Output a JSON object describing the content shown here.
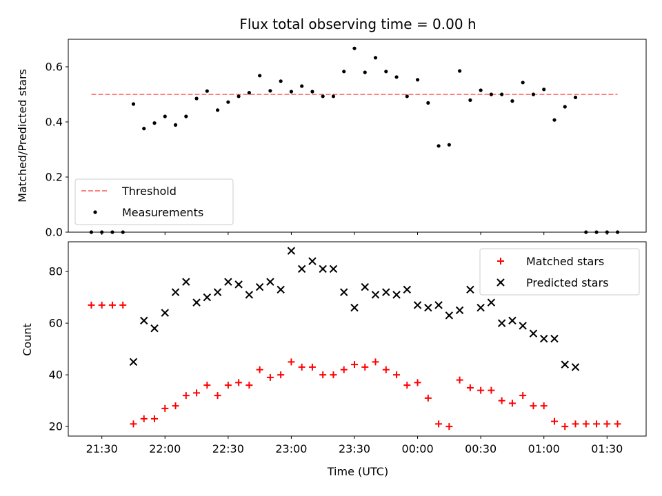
{
  "chart_data": [
    {
      "type": "scatter",
      "title": "Flux total observing time = 0.00 h",
      "xlabel": "",
      "ylabel": "Matched/Predicted stars",
      "ylim": [
        0,
        0.7
      ],
      "yticks": [
        "0.0",
        "0.2",
        "0.4",
        "0.6"
      ],
      "ytick_values": [
        0,
        0.2,
        0.4,
        0.6
      ],
      "threshold": {
        "name": "Threshold",
        "value": 0.5,
        "x_start": "21:25",
        "x_end": "01:35",
        "color": "#ff8080"
      },
      "series": [
        {
          "name": "Measurements",
          "color": "#000000",
          "x": [
            "21:25",
            "21:30",
            "21:35",
            "21:40",
            "21:45",
            "21:50",
            "21:55",
            "22:00",
            "22:05",
            "22:10",
            "22:15",
            "22:20",
            "22:25",
            "22:30",
            "22:35",
            "22:40",
            "22:45",
            "22:50",
            "22:55",
            "23:00",
            "23:05",
            "23:10",
            "23:15",
            "23:20",
            "23:25",
            "23:30",
            "23:35",
            "23:40",
            "23:45",
            "23:50",
            "23:55",
            "00:00",
            "00:05",
            "00:10",
            "00:15",
            "00:20",
            "00:25",
            "00:30",
            "00:35",
            "00:40",
            "00:45",
            "00:50",
            "00:55",
            "01:00",
            "01:05",
            "01:10",
            "01:15",
            "01:20",
            "01:25",
            "01:30",
            "01:35"
          ],
          "y": [
            0,
            0,
            0,
            0,
            0.465,
            0.376,
            0.396,
            0.42,
            0.389,
            0.42,
            0.485,
            0.512,
            0.443,
            0.472,
            0.493,
            0.506,
            0.568,
            0.513,
            0.548,
            0.51,
            0.53,
            0.51,
            0.493,
            0.493,
            0.583,
            0.667,
            0.58,
            0.633,
            0.583,
            0.563,
            0.493,
            0.553,
            0.469,
            0.313,
            0.317,
            0.585,
            0.479,
            0.515,
            0.5,
            0.5,
            0.476,
            0.543,
            0.5,
            0.518,
            0.407,
            0.455,
            0.489,
            0,
            0,
            0,
            0
          ]
        }
      ]
    },
    {
      "type": "scatter",
      "title": "",
      "xlabel": "Time (UTC)",
      "ylabel": "Count",
      "ylim": [
        16.3,
        91.5
      ],
      "yticks": [
        "20",
        "40",
        "60",
        "80"
      ],
      "ytick_values": [
        20,
        40,
        60,
        80
      ],
      "x_ticks": [
        "21:30",
        "22:00",
        "22:30",
        "23:00",
        "23:30",
        "00:00",
        "00:30",
        "01:00",
        "01:30"
      ],
      "legend_placement": "top-right",
      "series": [
        {
          "name": "Matched stars",
          "marker": "plus",
          "color": "#ff0000",
          "x": [
            "21:25",
            "21:30",
            "21:35",
            "21:40",
            "21:45",
            "21:50",
            "21:55",
            "22:00",
            "22:05",
            "22:10",
            "22:15",
            "22:20",
            "22:25",
            "22:30",
            "22:35",
            "22:40",
            "22:45",
            "22:50",
            "22:55",
            "23:00",
            "23:05",
            "23:10",
            "23:15",
            "23:20",
            "23:25",
            "23:30",
            "23:35",
            "23:40",
            "23:45",
            "23:50",
            "23:55",
            "00:00",
            "00:05",
            "00:10",
            "00:15",
            "00:20",
            "00:25",
            "00:30",
            "00:35",
            "00:40",
            "00:45",
            "00:50",
            "00:55",
            "01:00",
            "01:05",
            "01:10",
            "01:15",
            "01:20",
            "01:25",
            "01:30",
            "01:35"
          ],
          "y": [
            67,
            67,
            67,
            67,
            21,
            23,
            23,
            27,
            28,
            32,
            33,
            36,
            32,
            36,
            37,
            36,
            42,
            39,
            40,
            45,
            43,
            43,
            40,
            40,
            42,
            44,
            43,
            45,
            42,
            40,
            36,
            37,
            31,
            21,
            20,
            38,
            35,
            34,
            34,
            30,
            29,
            32,
            28,
            28,
            22,
            20,
            21,
            21,
            21,
            21,
            21
          ]
        },
        {
          "name": "Predicted stars",
          "marker": "x",
          "color": "#000000",
          "x": [
            "21:45",
            "21:50",
            "21:55",
            "22:00",
            "22:05",
            "22:10",
            "22:15",
            "22:20",
            "22:25",
            "22:30",
            "22:35",
            "22:40",
            "22:45",
            "22:50",
            "22:55",
            "23:00",
            "23:05",
            "23:10",
            "23:15",
            "23:20",
            "23:25",
            "23:30",
            "23:35",
            "23:40",
            "23:45",
            "23:50",
            "23:55",
            "00:00",
            "00:05",
            "00:10",
            "00:15",
            "00:20",
            "00:25",
            "00:30",
            "00:35",
            "00:40",
            "00:45",
            "00:50",
            "00:55",
            "01:00",
            "01:05",
            "01:10",
            "01:15"
          ],
          "y": [
            45,
            61,
            58,
            64,
            72,
            76,
            68,
            70,
            72,
            76,
            75,
            71,
            74,
            76,
            73,
            88,
            81,
            84,
            81,
            81,
            72,
            66,
            74,
            71,
            72,
            71,
            73,
            67,
            66,
            67,
            63,
            65,
            73,
            66,
            68,
            60,
            61,
            59,
            56,
            54,
            54,
            44,
            43
          ]
        }
      ]
    }
  ]
}
